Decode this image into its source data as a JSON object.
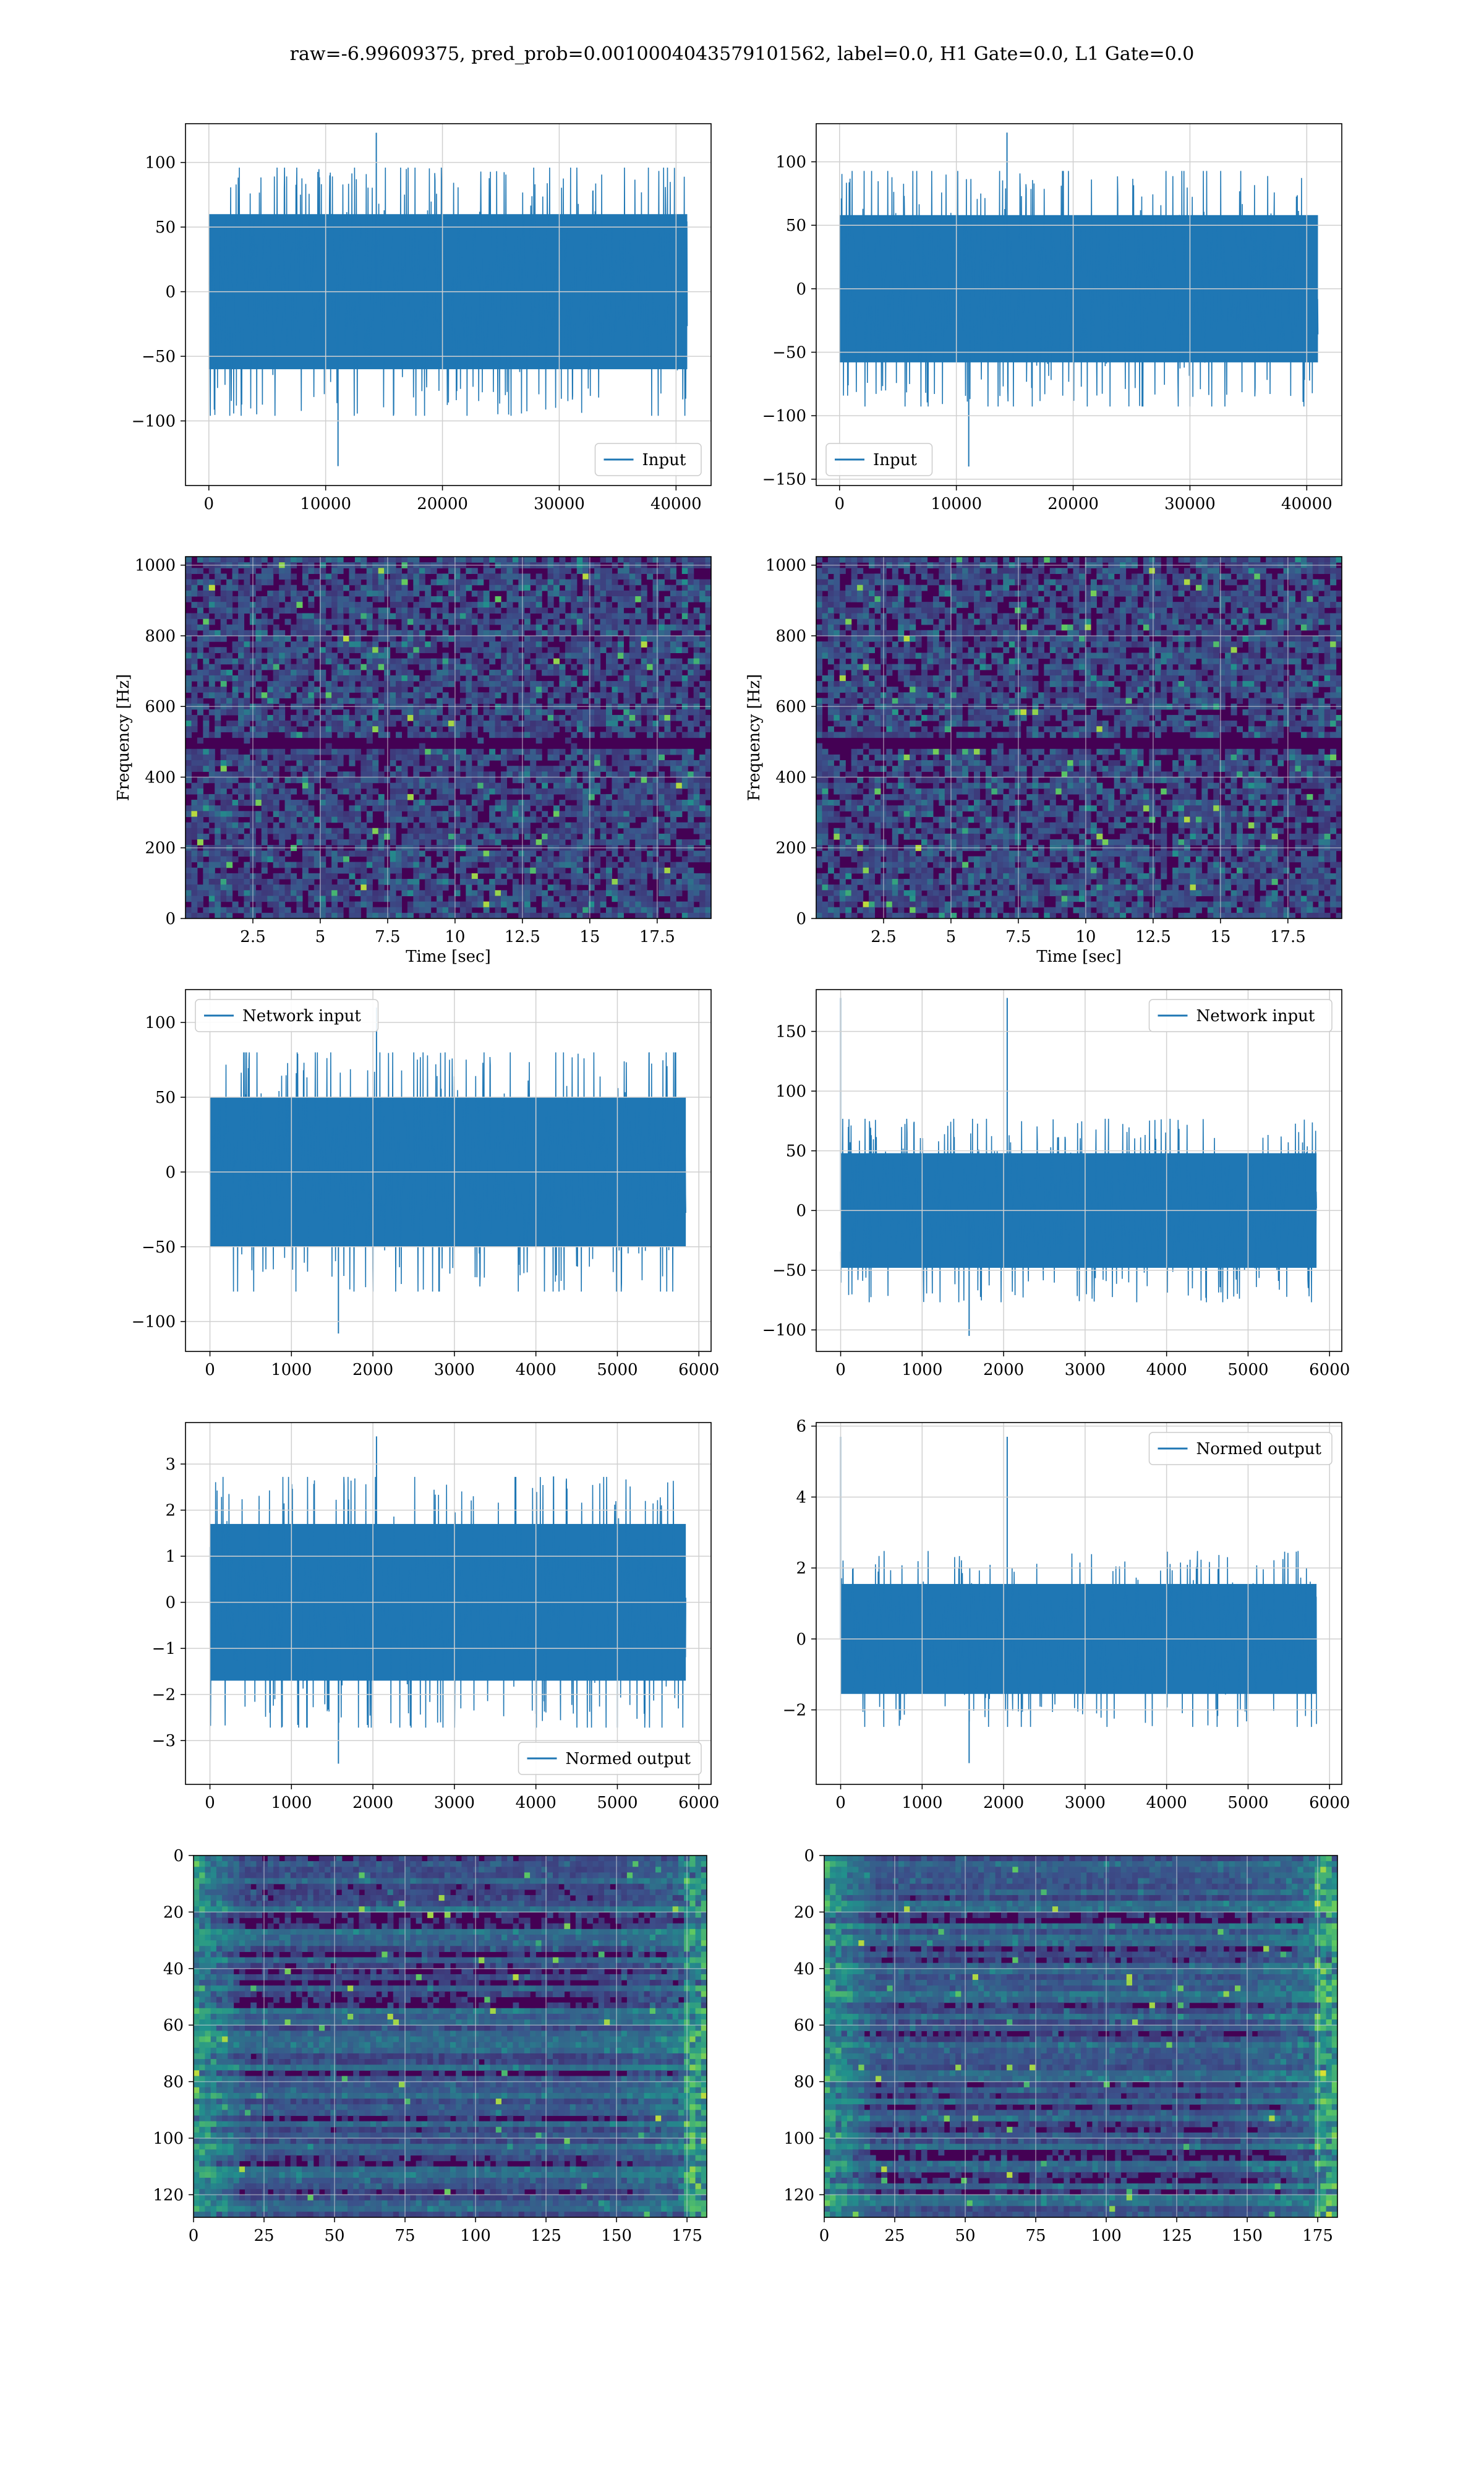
{
  "suptitle": "raw=-6.99609375, pred_prob=0.0010004043579101562, label=0.0, H1 Gate=0.0, L1 Gate=0.0",
  "colors": {
    "line": "#1f77b4",
    "grid": "#d0d0d0",
    "heat_low": "#440154",
    "heat_mid": "#21918c",
    "heat_high": "#fde725"
  },
  "chart_data": [
    {
      "id": "r1c1",
      "type": "line",
      "legend": [
        "Input"
      ],
      "legend_loc": "lower right",
      "x_range": [
        0,
        40960
      ],
      "xlim": [
        -2000,
        43000
      ],
      "ylim": [
        -150,
        130
      ],
      "xticks": [
        0,
        10000,
        20000,
        30000,
        40000
      ],
      "yticks": [
        -100,
        -50,
        0,
        50,
        100
      ],
      "noise": {
        "core_amp": 60,
        "spike_amp": 105,
        "extreme_max": 123,
        "extreme_min": -135
      },
      "grid": true
    },
    {
      "id": "r1c2",
      "type": "line",
      "legend": [
        "Input"
      ],
      "legend_loc": "lower left",
      "x_range": [
        0,
        40960
      ],
      "xlim": [
        -2000,
        43000
      ],
      "ylim": [
        -155,
        130
      ],
      "xticks": [
        0,
        10000,
        20000,
        30000,
        40000
      ],
      "yticks": [
        -150,
        -100,
        -50,
        0,
        50,
        100
      ],
      "noise": {
        "core_amp": 58,
        "spike_amp": 100,
        "extreme_max": 123,
        "extreme_min": -140
      },
      "grid": true
    },
    {
      "id": "r2c1",
      "type": "heatmap",
      "ylabel": "Frequency [Hz]",
      "xlabel": "Time [sec]",
      "xlim": [
        0,
        19.5
      ],
      "ylim": [
        0,
        1024
      ],
      "xticks": [
        2.5,
        5.0,
        7.5,
        10.0,
        12.5,
        15.0,
        17.5
      ],
      "yticks": [
        0,
        200,
        400,
        600,
        800,
        1000
      ],
      "grid": true
    },
    {
      "id": "r2c2",
      "type": "heatmap",
      "ylabel": "Frequency [Hz]",
      "xlabel": "Time [sec]",
      "xlim": [
        0,
        19.5
      ],
      "ylim": [
        0,
        1024
      ],
      "xticks": [
        2.5,
        5.0,
        7.5,
        10.0,
        12.5,
        15.0,
        17.5
      ],
      "yticks": [
        0,
        200,
        400,
        600,
        800,
        1000
      ],
      "grid": true
    },
    {
      "id": "r3c1",
      "type": "line",
      "legend": [
        "Network input"
      ],
      "legend_loc": "upper left",
      "x_range": [
        0,
        5840
      ],
      "xlim": [
        -300,
        6150
      ],
      "ylim": [
        -120,
        122
      ],
      "xticks": [
        0,
        1000,
        2000,
        3000,
        4000,
        5000,
        6000
      ],
      "yticks": [
        -100,
        -50,
        0,
        50,
        100
      ],
      "noise": {
        "core_amp": 50,
        "spike_amp": 90,
        "extreme_max": 110,
        "extreme_min": -108
      },
      "grid": true
    },
    {
      "id": "r3c2",
      "type": "line",
      "legend": [
        "Network input"
      ],
      "legend_loc": "upper right",
      "x_range": [
        0,
        5840
      ],
      "xlim": [
        -300,
        6150
      ],
      "ylim": [
        -118,
        185
      ],
      "xticks": [
        0,
        1000,
        2000,
        3000,
        4000,
        5000,
        6000
      ],
      "yticks": [
        -100,
        -50,
        0,
        50,
        100,
        150
      ],
      "noise": {
        "core_amp": 48,
        "spike_amp": 80,
        "extreme_max": 178,
        "extreme_min": -105
      },
      "grid": true
    },
    {
      "id": "r4c1",
      "type": "line",
      "legend": [
        "Normed output"
      ],
      "legend_loc": "lower right",
      "x_range": [
        0,
        5840
      ],
      "xlim": [
        -300,
        6150
      ],
      "ylim": [
        -3.95,
        3.9
      ],
      "xticks": [
        0,
        1000,
        2000,
        3000,
        4000,
        5000,
        6000
      ],
      "yticks": [
        -3,
        -2,
        -1,
        0,
        1,
        2,
        3
      ],
      "noise": {
        "core_amp": 1.7,
        "spike_amp": 3.0,
        "extreme_max": 3.6,
        "extreme_min": -3.5
      },
      "grid": true
    },
    {
      "id": "r4c2",
      "type": "line",
      "legend": [
        "Normed output"
      ],
      "legend_loc": "upper right",
      "x_range": [
        0,
        5840
      ],
      "xlim": [
        -300,
        6150
      ],
      "ylim": [
        -4.1,
        6.1
      ],
      "xticks": [
        0,
        1000,
        2000,
        3000,
        4000,
        5000,
        6000
      ],
      "yticks": [
        -2,
        0,
        2,
        4,
        6
      ],
      "noise": {
        "core_amp": 1.55,
        "spike_amp": 2.7,
        "extreme_max": 5.7,
        "extreme_min": -3.5
      },
      "grid": true
    },
    {
      "id": "r5c1",
      "type": "heatmap",
      "xlim": [
        0,
        182
      ],
      "ylim": [
        128,
        0
      ],
      "xticks": [
        0,
        25,
        50,
        75,
        100,
        125,
        150,
        175
      ],
      "yticks": [
        0,
        20,
        40,
        60,
        80,
        100,
        120
      ],
      "grid": true
    },
    {
      "id": "r5c2",
      "type": "heatmap",
      "xlim": [
        0,
        182
      ],
      "ylim": [
        128,
        0
      ],
      "xticks": [
        0,
        25,
        50,
        75,
        100,
        125,
        150,
        175
      ],
      "yticks": [
        0,
        20,
        40,
        60,
        80,
        100,
        120
      ],
      "grid": true
    }
  ]
}
